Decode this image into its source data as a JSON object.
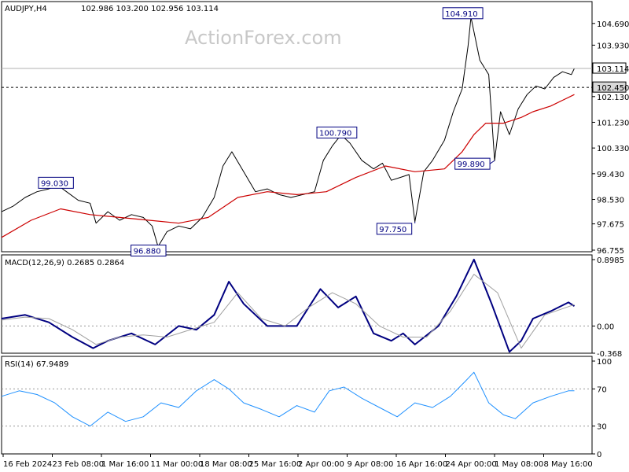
{
  "header": {
    "symbol": "AUDJPY,H4",
    "ohlc": "102.986 103.200 102.956 103.114"
  },
  "watermark": "ActionForex.com",
  "colors": {
    "price": "#000000",
    "ma": "#cc0000",
    "macd": "#000080",
    "signal": "#a0a0a0",
    "rsi": "#1e90ff",
    "annotation_border": "#000080"
  },
  "chart_data": [
    {
      "type": "line",
      "panel": "price",
      "ylim": [
        96.755,
        105.4
      ],
      "y_ticks": [
        {
          "value": 104.69,
          "label": "104.690"
        },
        {
          "value": 103.93,
          "label": "103.930"
        },
        {
          "value": 102.13,
          "label": "102.130"
        },
        {
          "value": 101.23,
          "label": "101.230"
        },
        {
          "value": 100.33,
          "label": "100.330"
        },
        {
          "value": 99.43,
          "label": "99.430"
        },
        {
          "value": 98.53,
          "label": "98.530"
        },
        {
          "value": 97.675,
          "label": "97.675"
        },
        {
          "value": 96.755,
          "label": "96.755"
        }
      ],
      "current_price": {
        "value": 103.114,
        "label": "103.114"
      },
      "level_line": {
        "value": 102.45,
        "label": "102.450"
      },
      "annotations": [
        {
          "label": "99.030",
          "x": 0.095,
          "y": 99.03
        },
        {
          "label": "96.880",
          "x": 0.265,
          "y": 96.88
        },
        {
          "label": "100.790",
          "x": 0.575,
          "y": 100.79
        },
        {
          "label": "97.750",
          "x": 0.7,
          "y": 97.75
        },
        {
          "label": "104.910",
          "x": 0.795,
          "y": 104.91
        },
        {
          "label": "99.890",
          "x": 0.835,
          "y": 99.89
        }
      ],
      "series": [
        {
          "key": "price",
          "x": [
            0,
            0.02,
            0.04,
            0.06,
            0.08,
            0.095,
            0.11,
            0.13,
            0.15,
            0.16,
            0.18,
            0.2,
            0.22,
            0.24,
            0.255,
            0.265,
            0.28,
            0.3,
            0.32,
            0.34,
            0.36,
            0.375,
            0.39,
            0.41,
            0.43,
            0.45,
            0.47,
            0.49,
            0.51,
            0.53,
            0.545,
            0.56,
            0.575,
            0.59,
            0.61,
            0.63,
            0.645,
            0.66,
            0.675,
            0.69,
            0.7,
            0.715,
            0.73,
            0.75,
            0.765,
            0.78,
            0.79,
            0.795,
            0.81,
            0.825,
            0.835,
            0.845,
            0.86,
            0.875,
            0.89,
            0.905,
            0.92,
            0.935,
            0.95,
            0.965,
            0.97
          ],
          "values": [
            98.1,
            98.3,
            98.6,
            98.8,
            98.9,
            99.03,
            98.8,
            98.5,
            98.4,
            97.7,
            98.1,
            97.8,
            98.0,
            97.9,
            97.6,
            96.88,
            97.4,
            97.6,
            97.5,
            97.9,
            98.6,
            99.7,
            100.2,
            99.5,
            98.8,
            98.9,
            98.7,
            98.6,
            98.7,
            98.8,
            99.9,
            100.4,
            100.79,
            100.5,
            99.9,
            99.6,
            99.8,
            99.2,
            99.3,
            99.4,
            97.75,
            99.5,
            99.9,
            100.6,
            101.6,
            102.4,
            103.9,
            104.91,
            103.4,
            102.9,
            99.89,
            101.6,
            100.8,
            101.7,
            102.2,
            102.5,
            102.4,
            102.8,
            103.0,
            102.9,
            103.114
          ]
        },
        {
          "key": "ma",
          "x": [
            0,
            0.05,
            0.1,
            0.15,
            0.2,
            0.25,
            0.3,
            0.35,
            0.4,
            0.45,
            0.5,
            0.55,
            0.6,
            0.65,
            0.7,
            0.75,
            0.78,
            0.8,
            0.82,
            0.85,
            0.88,
            0.9,
            0.93,
            0.95,
            0.97
          ],
          "values": [
            97.2,
            97.8,
            98.2,
            98.0,
            97.9,
            97.8,
            97.7,
            97.9,
            98.6,
            98.8,
            98.7,
            98.8,
            99.3,
            99.7,
            99.5,
            99.6,
            100.2,
            100.8,
            101.2,
            101.2,
            101.4,
            101.6,
            101.8,
            102.0,
            102.2
          ]
        }
      ]
    },
    {
      "type": "line",
      "panel": "macd",
      "title": "MACD(12,26,9) 0.2685 0.2864",
      "ylim": [
        -0.368,
        0.8985
      ],
      "y_ticks": [
        {
          "value": 0.8985,
          "label": "0.8985"
        },
        {
          "value": 0.0,
          "label": "0.00"
        },
        {
          "value": -0.368,
          "label": "-0.368"
        }
      ],
      "series": [
        {
          "key": "macd",
          "x": [
            0,
            0.04,
            0.08,
            0.12,
            0.155,
            0.18,
            0.22,
            0.26,
            0.3,
            0.33,
            0.36,
            0.385,
            0.41,
            0.45,
            0.5,
            0.54,
            0.57,
            0.6,
            0.63,
            0.66,
            0.68,
            0.7,
            0.74,
            0.77,
            0.8,
            0.83,
            0.86,
            0.88,
            0.9,
            0.93,
            0.96,
            0.97
          ],
          "values": [
            0.1,
            0.15,
            0.05,
            -0.15,
            -0.3,
            -0.2,
            -0.1,
            -0.25,
            0.0,
            -0.05,
            0.15,
            0.6,
            0.3,
            0.0,
            0.0,
            0.5,
            0.25,
            0.4,
            -0.1,
            -0.2,
            -0.1,
            -0.25,
            0.0,
            0.4,
            0.9,
            0.3,
            -0.35,
            -0.2,
            0.1,
            0.2,
            0.32,
            0.27
          ]
        },
        {
          "key": "signal",
          "x": [
            0,
            0.04,
            0.08,
            0.12,
            0.16,
            0.2,
            0.24,
            0.28,
            0.32,
            0.36,
            0.4,
            0.44,
            0.48,
            0.52,
            0.56,
            0.6,
            0.64,
            0.68,
            0.72,
            0.76,
            0.8,
            0.84,
            0.88,
            0.92,
            0.97
          ],
          "values": [
            0.08,
            0.12,
            0.1,
            -0.05,
            -0.25,
            -0.15,
            -0.12,
            -0.15,
            -0.05,
            0.05,
            0.45,
            0.1,
            0.0,
            0.25,
            0.45,
            0.3,
            0.0,
            -0.15,
            -0.15,
            0.2,
            0.7,
            0.45,
            -0.3,
            0.15,
            0.29
          ]
        }
      ]
    },
    {
      "type": "line",
      "panel": "rsi",
      "title": "RSI(14) 67.9489",
      "ylim": [
        0,
        100
      ],
      "y_ticks": [
        {
          "value": 100,
          "label": "100"
        },
        {
          "value": 70,
          "label": "70"
        },
        {
          "value": 30,
          "label": "30"
        },
        {
          "value": 0,
          "label": "0"
        }
      ],
      "levels": [
        70,
        30
      ],
      "series": [
        {
          "key": "rsi",
          "x": [
            0,
            0.03,
            0.06,
            0.09,
            0.12,
            0.15,
            0.18,
            0.21,
            0.24,
            0.27,
            0.3,
            0.33,
            0.36,
            0.385,
            0.41,
            0.44,
            0.47,
            0.5,
            0.53,
            0.555,
            0.58,
            0.61,
            0.64,
            0.67,
            0.7,
            0.73,
            0.76,
            0.785,
            0.8,
            0.825,
            0.85,
            0.87,
            0.9,
            0.93,
            0.96,
            0.97
          ],
          "values": [
            62,
            68,
            64,
            55,
            40,
            30,
            45,
            35,
            40,
            55,
            50,
            68,
            80,
            70,
            55,
            48,
            40,
            52,
            45,
            68,
            72,
            60,
            50,
            40,
            55,
            50,
            62,
            78,
            88,
            55,
            42,
            38,
            55,
            62,
            68,
            67.95
          ]
        }
      ]
    }
  ],
  "x_axis": {
    "labels": [
      "16 Feb 2024",
      "23 Feb 08:00",
      "1 Mar 16:00",
      "11 Mar 00:00",
      "18 Mar 08:00",
      "25 Mar 16:00",
      "2 Apr 00:00",
      "9 Apr 08:00",
      "16 Apr 16:00",
      "24 Apr 00:00",
      "1 May 08:00",
      "8 May 16:00"
    ]
  }
}
